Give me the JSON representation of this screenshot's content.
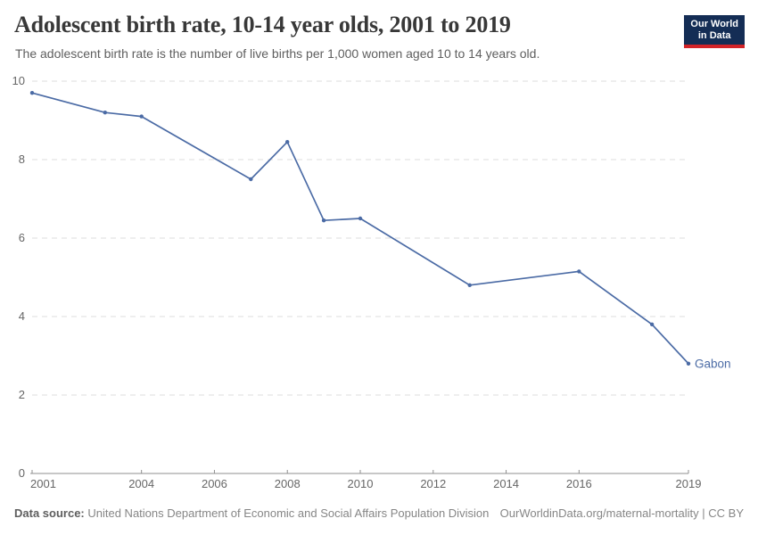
{
  "header": {
    "title": "Adolescent birth rate, 10-14 year olds, 2001 to 2019",
    "subtitle": "The adolescent birth rate is the number of live births per 1,000 women aged 10 to 14 years old.",
    "logo": {
      "line1": "Our World",
      "line2": "in Data"
    }
  },
  "chart_data": {
    "type": "line",
    "title": "Adolescent birth rate, 10-14 year olds, 2001 to 2019",
    "xlabel": "",
    "ylabel": "",
    "xlim": [
      2001,
      2019
    ],
    "ylim": [
      0,
      10
    ],
    "x_ticks": [
      2001,
      2004,
      2006,
      2008,
      2010,
      2012,
      2014,
      2016,
      2019
    ],
    "y_ticks": [
      0,
      2,
      4,
      6,
      8,
      10
    ],
    "grid": "horizontal-dashed",
    "legend_position": "end-of-line-label",
    "series": [
      {
        "name": "Gabon",
        "color": "#4b6ba5",
        "x": [
          2001,
          2003,
          2004,
          2007,
          2008,
          2009,
          2010,
          2013,
          2016,
          2018,
          2019
        ],
        "values": [
          9.7,
          9.2,
          9.1,
          7.5,
          8.45,
          6.45,
          6.5,
          4.8,
          5.15,
          3.8,
          2.8
        ]
      }
    ]
  },
  "footer": {
    "source_label": "Data source:",
    "source_text": " United Nations Department of Economic and Social Affairs Population Division",
    "credit": "OurWorldinData.org/maternal-mortality | CC BY"
  },
  "colors": {
    "line": "#4b6ba5",
    "logo_bg": "#142d55",
    "logo_accent": "#d22328",
    "grid": "#dddddd",
    "axis": "#8f8f8f",
    "tick_text": "#666666",
    "title_text": "#383838",
    "subtitle_text": "#5e5e5e"
  }
}
